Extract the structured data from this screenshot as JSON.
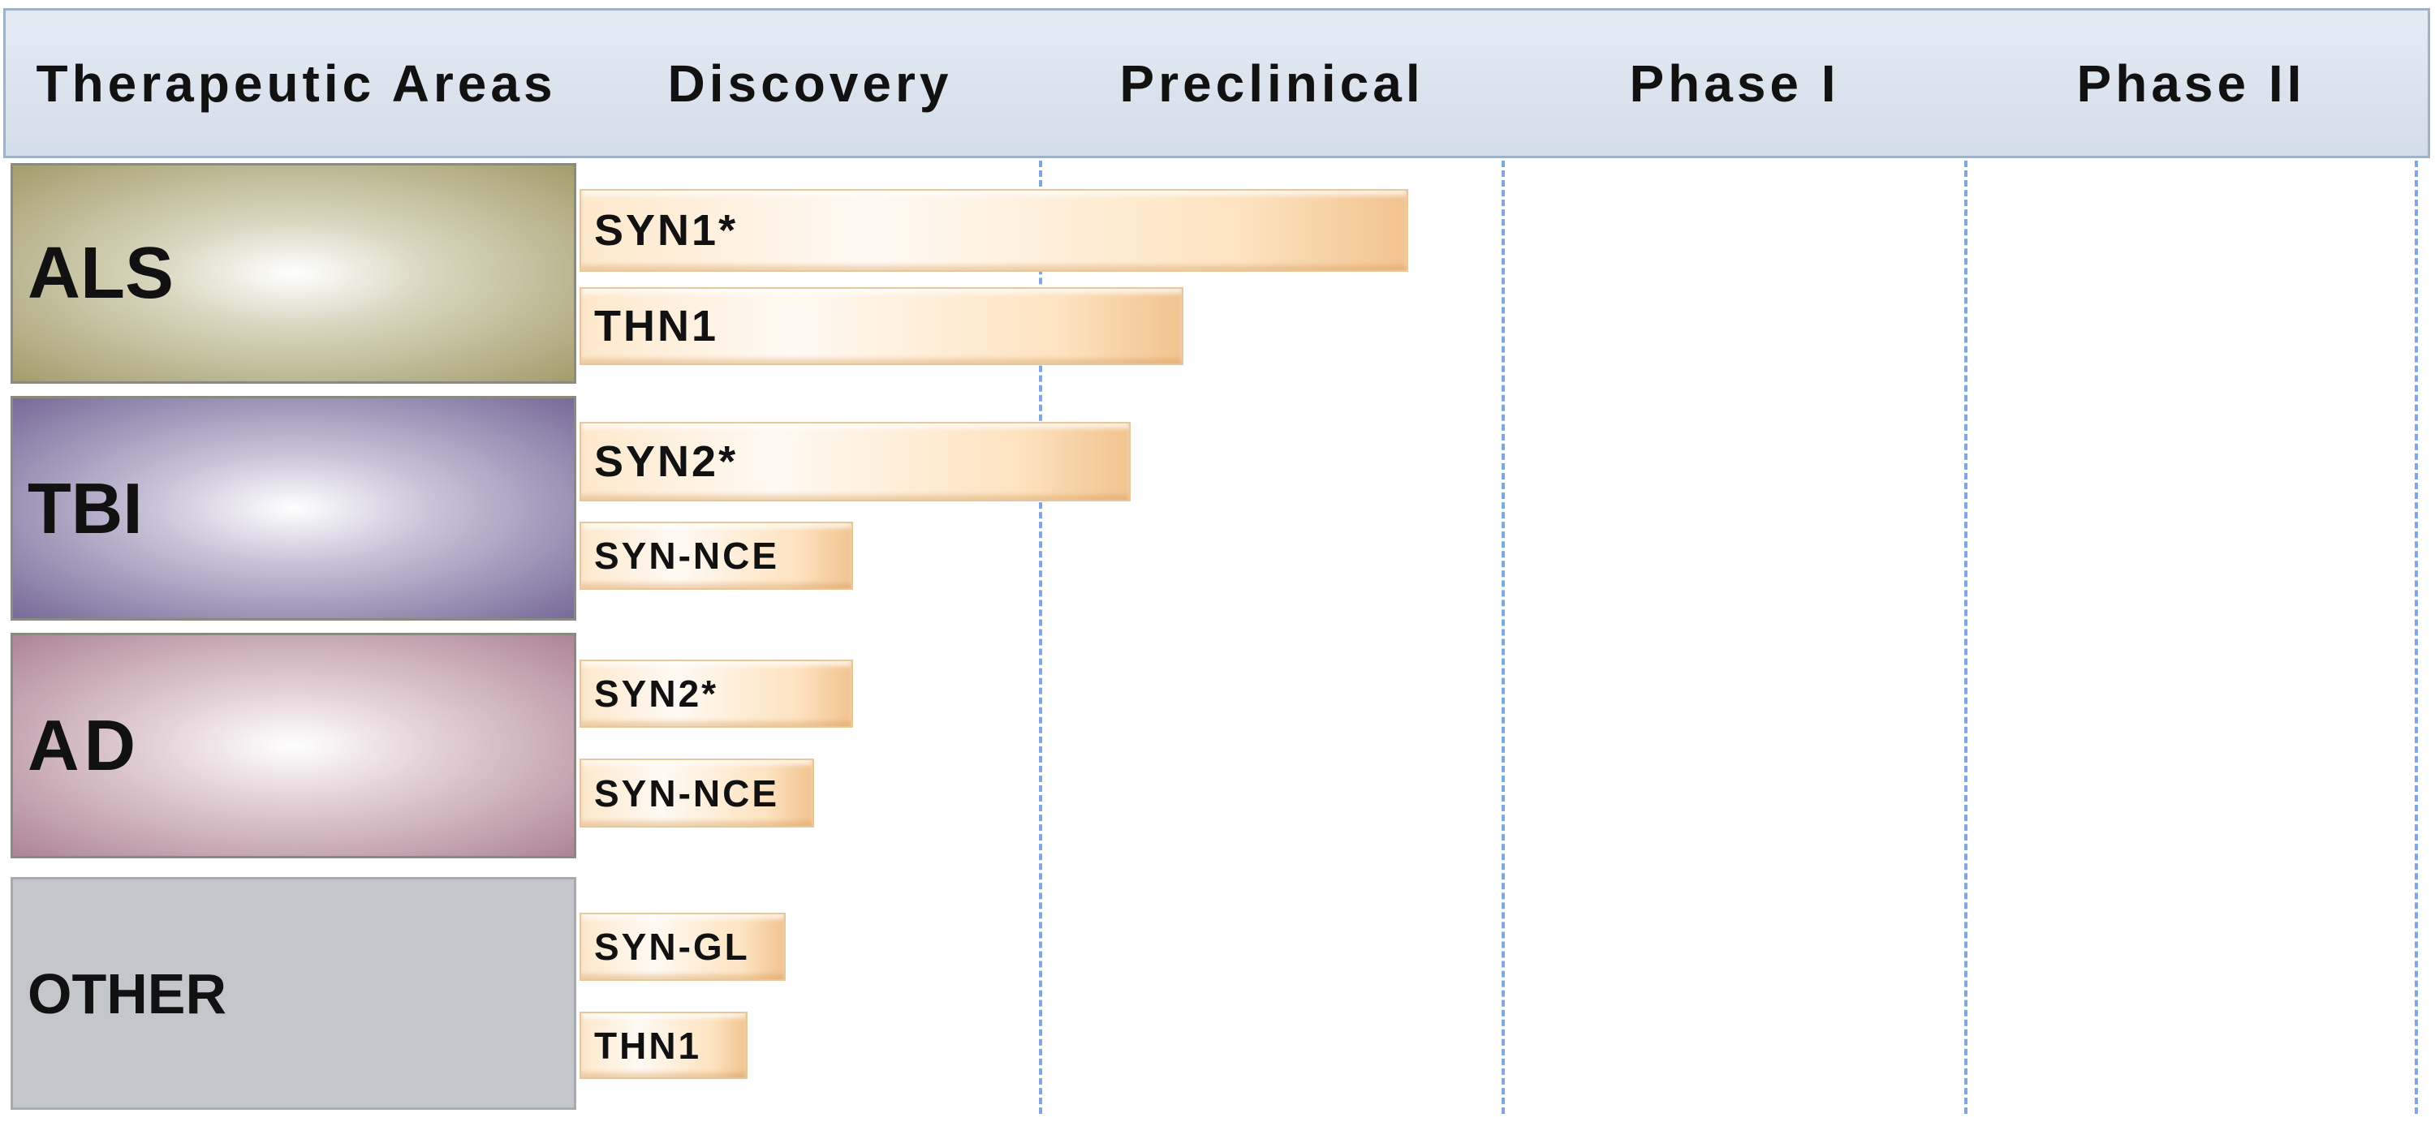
{
  "header": {
    "columns": [
      "Therapeutic Areas",
      "Discovery",
      "Preclinical",
      "Phase I",
      "Phase II"
    ]
  },
  "areas": [
    {
      "name": "ALS",
      "programs": [
        "SYN1*",
        "THN1"
      ]
    },
    {
      "name": "TBI",
      "programs": [
        "SYN2*",
        "SYN-NCE"
      ]
    },
    {
      "name": "AD",
      "programs": [
        "SYN2*",
        "SYN-NCE"
      ]
    },
    {
      "name": "OTHER",
      "programs": [
        "SYN-GL",
        "THN1"
      ]
    }
  ]
}
